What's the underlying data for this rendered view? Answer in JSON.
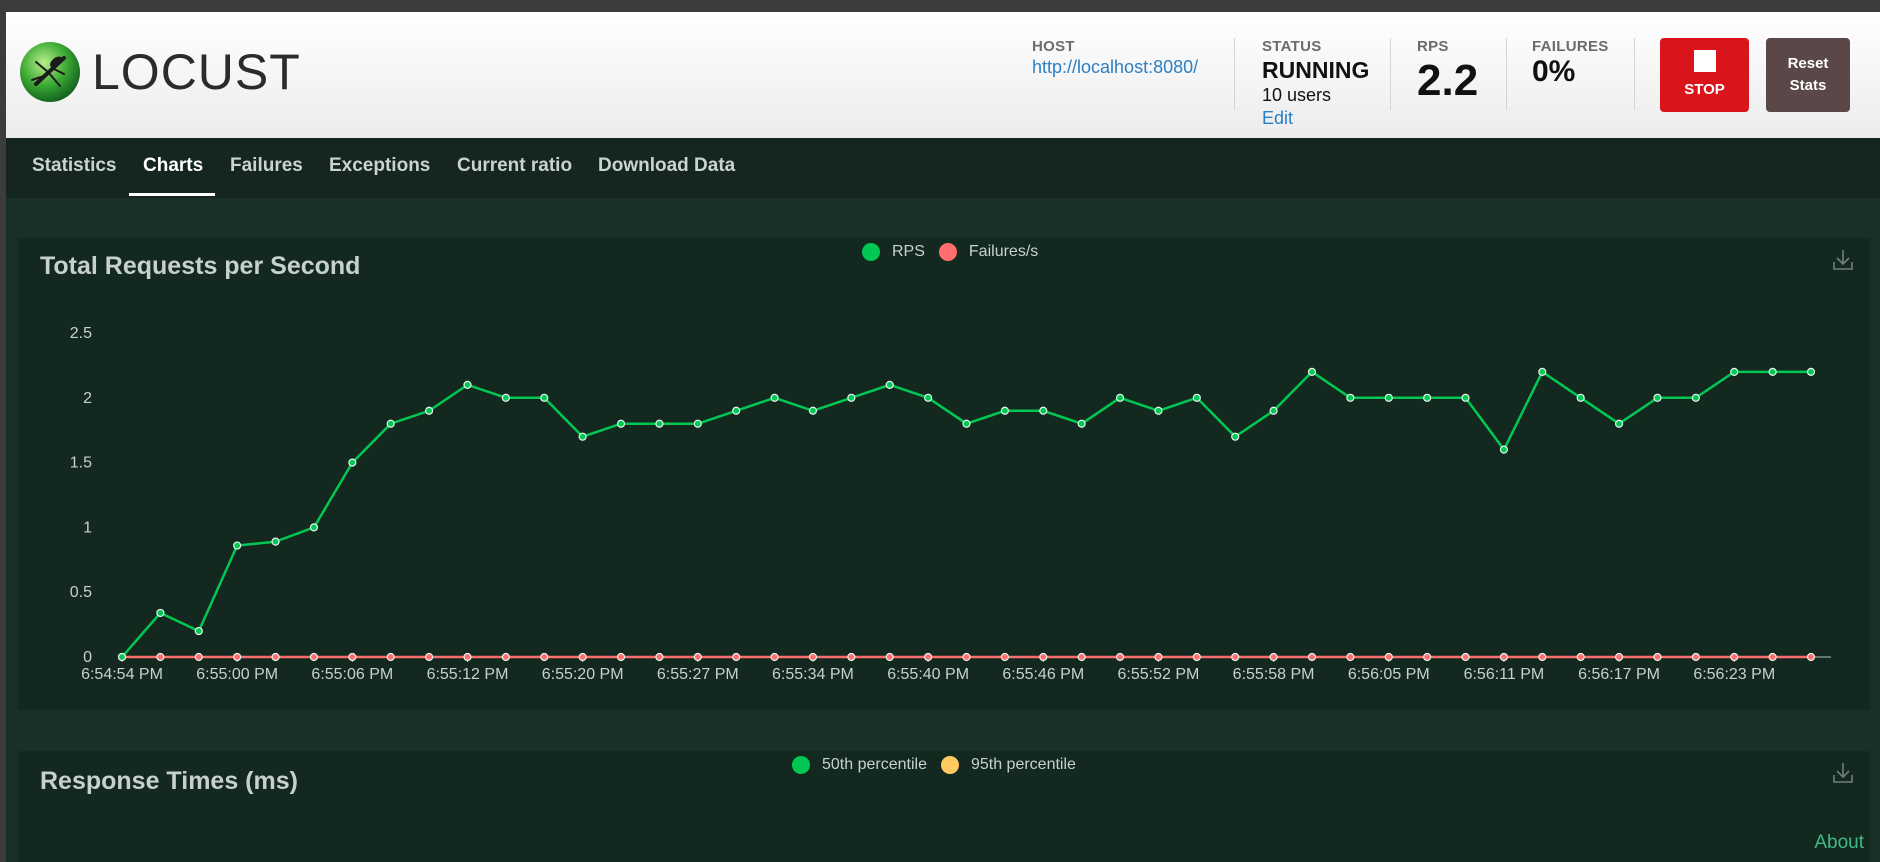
{
  "header": {
    "logo_text": "LOCUST",
    "host_label": "HOST",
    "host_value": "http://localhost:8080/",
    "status_label": "STATUS",
    "status_value": "RUNNING",
    "users_text": "10 users",
    "edit_label": "Edit",
    "rps_label": "RPS",
    "rps_value": "2.2",
    "failures_label": "FAILURES",
    "failures_value": "0%",
    "stop_label": "STOP",
    "reset_label_line1": "Reset",
    "reset_label_line2": "Stats"
  },
  "nav": {
    "tabs": [
      "Statistics",
      "Charts",
      "Failures",
      "Exceptions",
      "Current ratio",
      "Download Data"
    ],
    "active_tab": "Charts"
  },
  "panels": {
    "rps_title": "Total Requests per Second",
    "response_title": "Response Times (ms)",
    "response_legend": [
      "50th percentile",
      "95th percentile"
    ]
  },
  "footer": {
    "about": "About"
  },
  "colors": {
    "rps": "#00c853",
    "failures": "#ff6d6d",
    "p50": "#00c853",
    "p95": "#ffca5f",
    "stop": "#d9141b",
    "link": "#2b7fc3"
  },
  "chart_data": {
    "type": "line",
    "title": "Total Requests per Second",
    "xlabel": "",
    "ylabel": "",
    "ylim": [
      0,
      2.5
    ],
    "yticks": [
      0,
      0.5,
      1,
      1.5,
      2,
      2.5
    ],
    "x_tick_labels": [
      "6:54:54 PM",
      "6:55:00 PM",
      "6:55:06 PM",
      "6:55:12 PM",
      "6:55:20 PM",
      "6:55:27 PM",
      "6:55:34 PM",
      "6:55:40 PM",
      "6:55:46 PM",
      "6:55:52 PM",
      "6:55:58 PM",
      "6:56:05 PM",
      "6:56:11 PM",
      "6:56:17 PM",
      "6:56:23 PM"
    ],
    "x_tick_every": 3,
    "legend_position": "top-center",
    "grid": false,
    "series": [
      {
        "name": "RPS",
        "values": [
          0,
          0.34,
          0.2,
          0.86,
          0.89,
          1.0,
          1.5,
          1.8,
          1.9,
          2.1,
          2.0,
          2.0,
          1.7,
          1.8,
          1.8,
          1.8,
          1.9,
          2.0,
          1.9,
          2.0,
          2.1,
          2.0,
          1.8,
          1.9,
          1.9,
          1.8,
          2.0,
          1.9,
          2.0,
          1.7,
          1.9,
          2.2,
          2.0,
          2.0,
          2.0,
          2.0,
          1.6,
          2.2,
          2.0,
          1.8,
          2.0,
          2.0,
          2.2,
          2.2,
          2.2
        ]
      },
      {
        "name": "Failures/s",
        "values": [
          0,
          0,
          0,
          0,
          0,
          0,
          0,
          0,
          0,
          0,
          0,
          0,
          0,
          0,
          0,
          0,
          0,
          0,
          0,
          0,
          0,
          0,
          0,
          0,
          0,
          0,
          0,
          0,
          0,
          0,
          0,
          0,
          0,
          0,
          0,
          0,
          0,
          0,
          0,
          0,
          0,
          0,
          0,
          0,
          0
        ]
      }
    ]
  }
}
